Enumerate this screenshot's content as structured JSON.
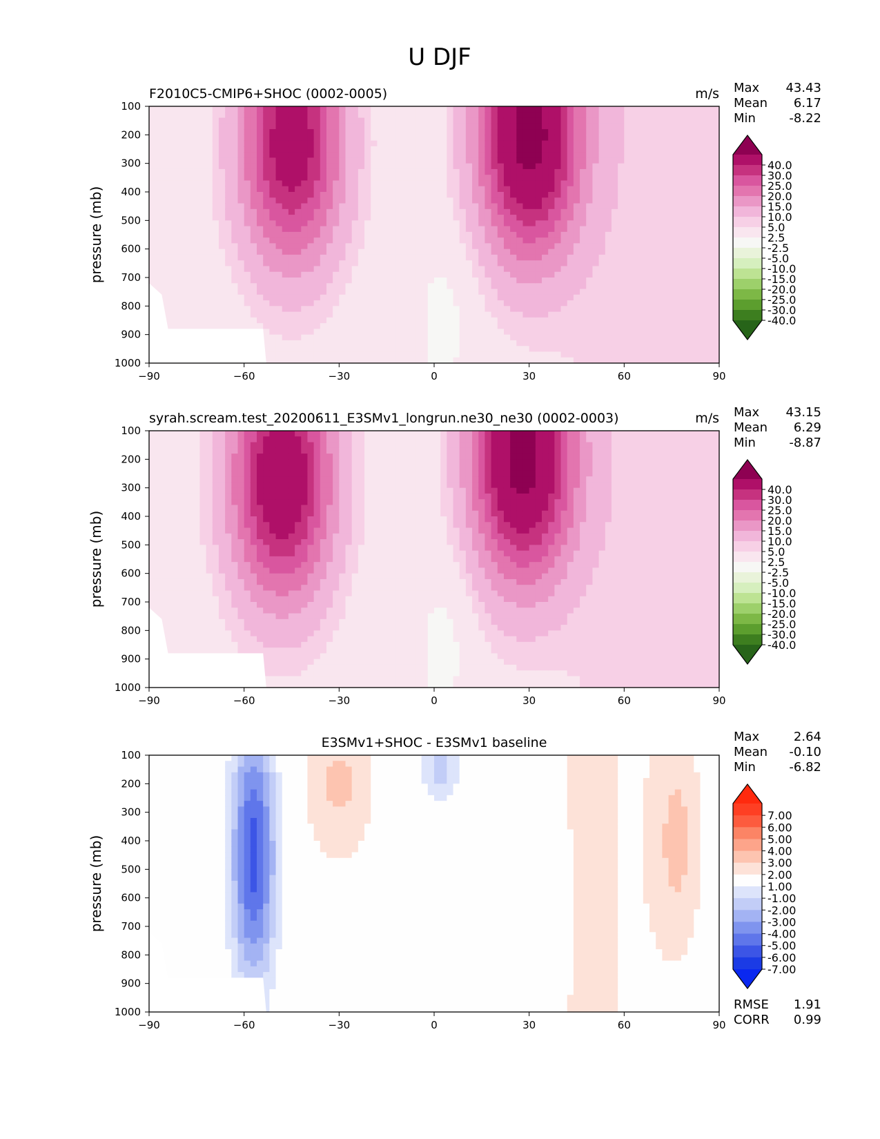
{
  "chart_data": {
    "type": "heatmap",
    "title": "U DJF",
    "x_ticks": [
      "−90",
      "−60",
      "−30",
      "0",
      "30",
      "60",
      "90"
    ],
    "y_ticks": [
      "100",
      "200",
      "300",
      "400",
      "500",
      "600",
      "700",
      "800",
      "900",
      "1000"
    ],
    "xlim": [
      -90,
      90
    ],
    "ylim": [
      1000,
      100
    ],
    "ylabel": "pressure (mb)",
    "panels": [
      {
        "title": "F2010C5-CMIP6+SHOC (0002-0005)",
        "units": "m/s",
        "stats": [
          {
            "label": "Max",
            "value": "43.43"
          },
          {
            "label": "Mean",
            "value": "6.17"
          },
          {
            "label": "Min",
            "value": "-8.22"
          }
        ],
        "colorbar": {
          "levels": [
            "40.0",
            "30.0",
            "25.0",
            "20.0",
            "15.0",
            "10.0",
            "5.0",
            "2.5",
            "-2.5",
            "-5.0",
            "-10.0",
            "-15.0",
            "-20.0",
            "-25.0",
            "-30.0",
            "-40.0"
          ],
          "colors": [
            "#8e0152",
            "#af1068",
            "#c6327f",
            "#d9569f",
            "#e375af",
            "#ea97c6",
            "#f1b6da",
            "#f7d0e6",
            "#f9e6ef",
            "#f7f7f5",
            "#e9f3da",
            "#d6efbe",
            "#bde393",
            "#9dd06b",
            "#7db846",
            "#5c9e2e",
            "#3d7e1f",
            "#276419"
          ]
        },
        "jets": [
          {
            "lat": -45,
            "core_p": 230,
            "core_max": 35
          },
          {
            "lat": 30,
            "core_p": 200,
            "core_max": 43
          }
        ]
      },
      {
        "title": "syrah.scream.test_20200611_E3SMv1_longrun.ne30_ne30 (0002-0003)",
        "units": "m/s",
        "stats": [
          {
            "label": "Max",
            "value": "43.15"
          },
          {
            "label": "Mean",
            "value": "6.29"
          },
          {
            "label": "Min",
            "value": "-8.87"
          }
        ],
        "colorbar": {
          "levels": [
            "40.0",
            "30.0",
            "25.0",
            "20.0",
            "15.0",
            "10.0",
            "5.0",
            "2.5",
            "-2.5",
            "-5.0",
            "-10.0",
            "-15.0",
            "-20.0",
            "-25.0",
            "-30.0",
            "-40.0"
          ],
          "colors": [
            "#8e0152",
            "#af1068",
            "#c6327f",
            "#d9569f",
            "#e375af",
            "#ea97c6",
            "#f1b6da",
            "#f7d0e6",
            "#f9e6ef",
            "#f7f7f5",
            "#e9f3da",
            "#d6efbe",
            "#bde393",
            "#9dd06b",
            "#7db846",
            "#5c9e2e",
            "#3d7e1f",
            "#276419"
          ]
        },
        "jets": [
          {
            "lat": -48,
            "core_p": 270,
            "core_max": 38
          },
          {
            "lat": 28,
            "core_p": 200,
            "core_max": 43
          }
        ]
      },
      {
        "title": "E3SMv1+SHOC - E3SMv1 baseline",
        "units": "",
        "stats": [
          {
            "label": "Max",
            "value": "2.64"
          },
          {
            "label": "Mean",
            "value": "-0.10"
          },
          {
            "label": "Min",
            "value": "-6.82"
          }
        ],
        "extra_stats": [
          {
            "label": "RMSE",
            "value": "1.91"
          },
          {
            "label": "CORR",
            "value": "0.99"
          }
        ],
        "colorbar": {
          "levels": [
            "7.00",
            "6.00",
            "5.00",
            "4.00",
            "3.00",
            "2.00",
            "1.00",
            "-1.00",
            "-2.00",
            "-3.00",
            "-4.00",
            "-5.00",
            "-6.00",
            "-7.00"
          ],
          "colors": [
            "#ff2a0e",
            "#fe3f23",
            "#fd5b3e",
            "#fc8465",
            "#fda48a",
            "#fdc4b0",
            "#fde2d8",
            "#fefefe",
            "#dde4fb",
            "#c2cdf7",
            "#a3b3f3",
            "#7f94ee",
            "#5f76ea",
            "#3c55e6",
            "#1b3be5",
            "#0a28f0"
          ]
        }
      }
    ]
  }
}
